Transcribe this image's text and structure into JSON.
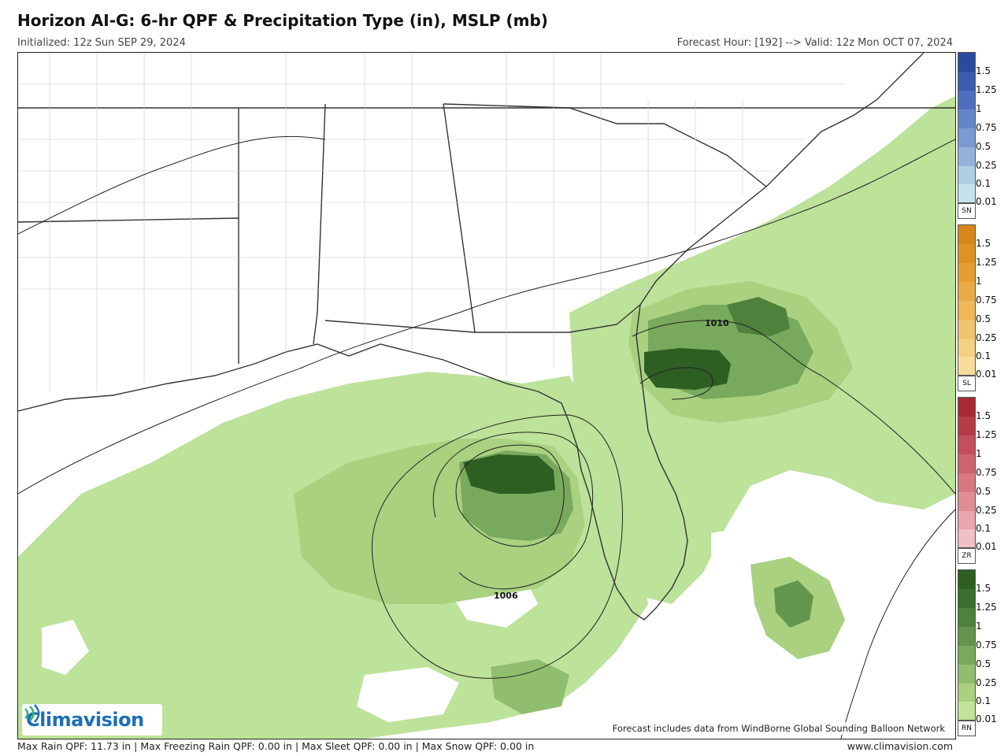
{
  "header": {
    "title": "Horizon AI-G: 6-hr QPF & Precipitation Type (in), MSLP (mb)",
    "initialized": "Initialized: 12z Sun SEP 29, 2024",
    "valid": "Forecast Hour: [192] --> Valid: 12z Mon OCT 07, 2024"
  },
  "map": {
    "isobar_labels": [
      "1010",
      "1006"
    ],
    "note": "Forecast includes data from WindBorne Global Sounding Balloon Network",
    "logo": "Climavision"
  },
  "legend": {
    "ticks": [
      "1.5",
      "1.25",
      "1",
      "0.75",
      "0.5",
      "0.25",
      "0.1",
      "0.01"
    ],
    "bars": [
      {
        "type": "SN",
        "colors": [
          "#2b4a9e",
          "#3c5cb0",
          "#4f6fbe",
          "#6485c8",
          "#7a9bd1",
          "#93b3da",
          "#add0e3",
          "#c4e3ec"
        ]
      },
      {
        "type": "SL",
        "colors": [
          "#d6871c",
          "#dd9226",
          "#e39e34",
          "#e8aa46",
          "#edb75a",
          "#f1c46f",
          "#f4d084",
          "#f7dc9b"
        ]
      },
      {
        "type": "ZR",
        "colors": [
          "#a52a34",
          "#b53c47",
          "#c24f5a",
          "#cd636d",
          "#d77881",
          "#e08e96",
          "#e9a6ac",
          "#f1c0c4"
        ]
      },
      {
        "type": "RN",
        "colors": [
          "#2d5e22",
          "#3a6e2d",
          "#4e823c",
          "#63954c",
          "#79a95d",
          "#90bd6e",
          "#a9d180",
          "#c2e498"
        ]
      }
    ]
  },
  "footer": {
    "stats": "Max Rain QPF: 11.73 in  |  Max Freezing Rain QPF: 0.00 in  |  Max Sleet QPF: 0.00 in  |  Max Snow QPF: 0.00 in",
    "website": "www.climavision.com"
  }
}
